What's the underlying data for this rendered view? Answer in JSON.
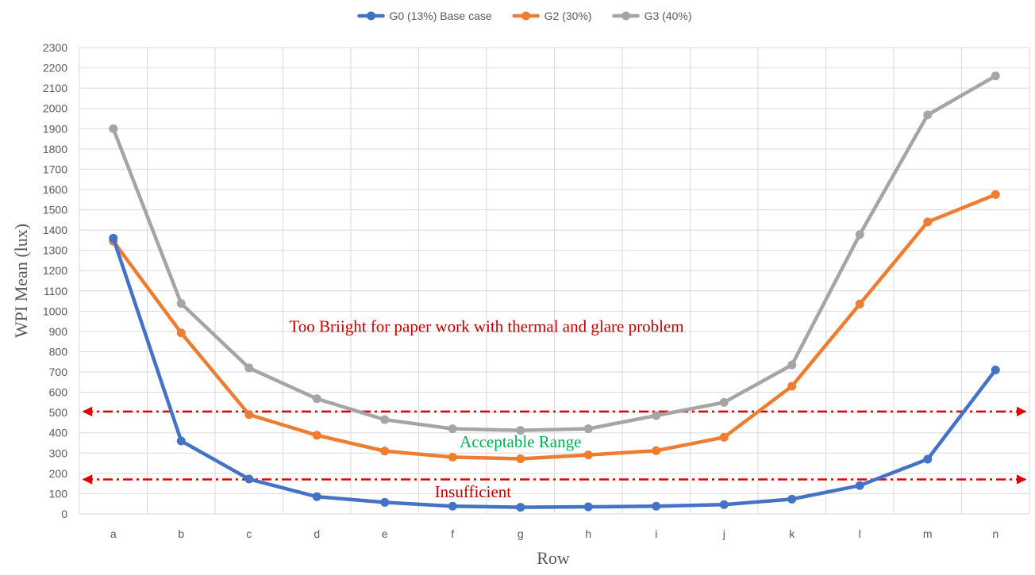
{
  "chart_data": {
    "type": "line",
    "title": "",
    "xlabel": "Row",
    "ylabel": "WPI  Mean (lux)",
    "ylim": [
      0,
      2300
    ],
    "y_step": 100,
    "grid": true,
    "legend_position": "top-center",
    "categories": [
      "a",
      "b",
      "c",
      "d",
      "e",
      "f",
      "g",
      "h",
      "i",
      "j",
      "k",
      "l",
      "m",
      "n"
    ],
    "series": [
      {
        "name": "G0 (13%) Base case",
        "color": "#4472C4",
        "values": [
          1360,
          360,
          172,
          85,
          57,
          38,
          33,
          35,
          38,
          46,
          73,
          140,
          270,
          710
        ]
      },
      {
        "name": "G2 (30%)",
        "color": "#ED7D31",
        "values": [
          1345,
          893,
          490,
          388,
          310,
          280,
          272,
          291,
          312,
          378,
          630,
          1035,
          1440,
          1575
        ]
      },
      {
        "name": "G3 (40%)",
        "color": "#A5A5A5",
        "values": [
          1900,
          1038,
          720,
          568,
          465,
          420,
          412,
          420,
          485,
          550,
          735,
          1378,
          1968,
          2160
        ]
      }
    ],
    "reference_lines": [
      {
        "value": 505,
        "color": "#E00000",
        "style": "dash-dot",
        "arrows": "both"
      },
      {
        "value": 170,
        "color": "#E00000",
        "style": "dash-dot",
        "arrows": "both"
      }
    ],
    "annotations": [
      {
        "text": "Too Briight  for paper work with thermal and glare problem",
        "x": 5.5,
        "y": 925,
        "color": "#C00000"
      },
      {
        "text": "Acceptable Range",
        "x": 6.0,
        "y": 355,
        "color": "#00B050"
      },
      {
        "text": "Insufficient",
        "x": 5.3,
        "y": 110,
        "color": "#C00000"
      }
    ]
  }
}
